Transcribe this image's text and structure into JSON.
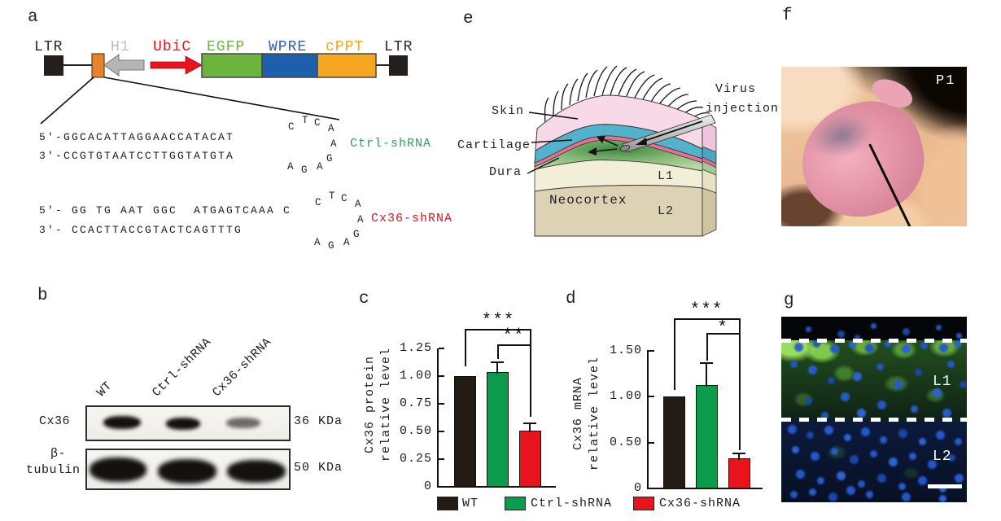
{
  "panel_a": {
    "letter": "a",
    "construct": {
      "ltr_left": "LTR",
      "h1": "H1",
      "ubic": "UbiC",
      "egfp": "EGFP",
      "wpre": "WPRE",
      "cppt": "cPPT",
      "ltr_right": "LTR"
    },
    "ctrl_shrna": {
      "strand5": "5′-GGCACATTAGGAACCATACAT",
      "strand3": "3′-CCGTGTAATCCTTGGTATGTA",
      "label": "Ctrl-shRNA",
      "loop": [
        "C",
        "T",
        "C",
        "A",
        "A",
        "G",
        "A",
        "G",
        "A"
      ]
    },
    "cx36_shrna": {
      "strand5": "5′- GG TG AAT GGC  ATGAGTCAAA C",
      "strand3": "3′- CCACTTACCGTACTCAGTTTG",
      "label": "Cx36-shRNA",
      "loop": [
        "C",
        "T",
        "C",
        "A",
        "A",
        "G",
        "A",
        "G",
        "A"
      ]
    }
  },
  "panel_b": {
    "letter": "b",
    "lanes": [
      "WT",
      "Ctrl-shRNA",
      "Cx36-shRNA"
    ],
    "row1_label": "Cx36",
    "row1_kda": "36 KDa",
    "row2_label_line1": "β-",
    "row2_label_line2": "tubulin",
    "row2_kda": "50 KDa"
  },
  "panel_e": {
    "letter": "e",
    "labels": {
      "skin": "Skin",
      "cartilage": "Cartilage",
      "dura": "Dura",
      "virus_line1": "Virus",
      "virus_line2": "injection",
      "neocortex": "Neocortex",
      "l1": "L1",
      "l2": "L2"
    }
  },
  "panel_f": {
    "letter": "f",
    "tag": "P1"
  },
  "panel_g": {
    "letter": "g",
    "l1": "L1",
    "l2": "L2"
  },
  "chart_data": [
    {
      "type": "bar",
      "panel": "c",
      "categories": [
        "WT",
        "Ctrl-shRNA",
        "Cx36-shRNA"
      ],
      "values": [
        1.0,
        1.04,
        0.51
      ],
      "errors": [
        0,
        0.09,
        0.07
      ],
      "bar_colors": [
        "#241b15",
        "#0a9b4d",
        "#e8131c"
      ],
      "ylabel_line1": "Cx36 protein",
      "ylabel_line2": "relative level",
      "xlabel": "",
      "yticks": [
        0,
        0.25,
        0.5,
        0.75,
        1.0,
        1.25
      ],
      "ytick_labels": [
        "0",
        "0.25",
        "0.50",
        "0.75",
        "1.00",
        "1.25"
      ],
      "ylim": [
        0,
        1.25
      ],
      "grid": false,
      "legend_position": "bottom",
      "significance": [
        {
          "label": "***",
          "between": [
            "WT",
            "Cx36-shRNA"
          ]
        },
        {
          "label": "**",
          "between": [
            "Ctrl-shRNA",
            "Cx36-shRNA"
          ]
        }
      ]
    },
    {
      "type": "bar",
      "panel": "d",
      "categories": [
        "WT",
        "Ctrl-shRNA",
        "Cx36-shRNA"
      ],
      "values": [
        1.0,
        1.12,
        0.33
      ],
      "errors": [
        0,
        0.25,
        0.06
      ],
      "bar_colors": [
        "#241b15",
        "#0a9b4d",
        "#e8131c"
      ],
      "ylabel_line1": "Cx36 mRNA",
      "ylabel_line2": "relative level",
      "xlabel": "",
      "yticks": [
        0,
        0.5,
        1.0,
        1.5
      ],
      "ytick_labels": [
        "0",
        "0.50",
        "1.00",
        "1.50"
      ],
      "ylim": [
        0,
        1.5
      ],
      "grid": false,
      "legend_position": "bottom",
      "significance": [
        {
          "label": "***",
          "between": [
            "WT",
            "Cx36-shRNA"
          ]
        },
        {
          "label": "*",
          "between": [
            "Ctrl-shRNA",
            "Cx36-shRNA"
          ]
        }
      ]
    }
  ],
  "legend": {
    "items": [
      {
        "label": "WT",
        "color": "#241b15"
      },
      {
        "label": "Ctrl-shRNA",
        "color": "#0a9b4d"
      },
      {
        "label": "Cx36-shRNA",
        "color": "#e8131c"
      }
    ]
  },
  "colors": {
    "wt_black": "#241b15",
    "ctrl_green": "#0a9b4d",
    "cx36_red": "#e8131c",
    "egfp_green": "#6db43f",
    "wpre_blue": "#1d5fac",
    "cppt_orange": "#f5a71f",
    "ubic_red": "#e8131c",
    "h1_gray": "#b5b5b5",
    "ctrl_label_green": "#2ea35f",
    "cx36_label_red": "#e8131c"
  }
}
